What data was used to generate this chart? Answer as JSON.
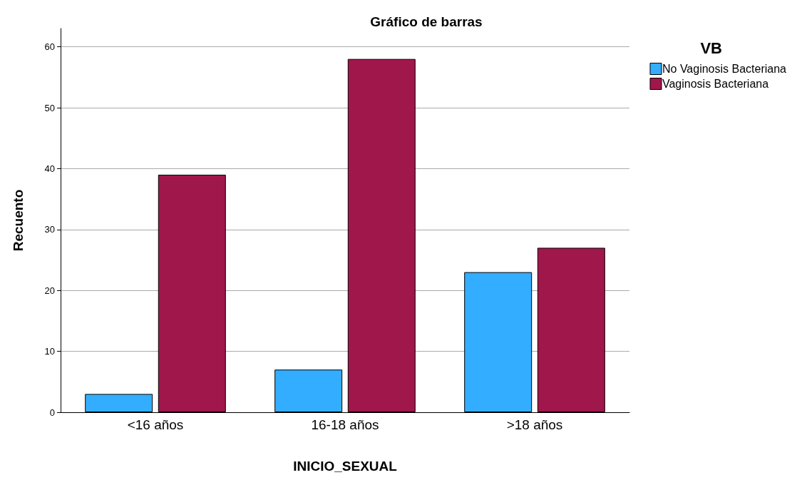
{
  "chart_data": {
    "type": "bar",
    "title": "Gráfico de barras",
    "xlabel": "INICIO_SEXUAL",
    "ylabel": "Recuento",
    "legend_title": "VB",
    "categories": [
      "<16 años",
      "16-18 años",
      ">18 años"
    ],
    "series": [
      {
        "name": "No Vaginosis Bacteriana",
        "color": "#33adff",
        "values": [
          3,
          7,
          23
        ]
      },
      {
        "name": "Vaginosis Bacteriana",
        "color": "#a0174b",
        "values": [
          39,
          58,
          27
        ]
      }
    ],
    "ylim": [
      0,
      63
    ],
    "yticks": [
      0,
      10,
      20,
      30,
      40,
      50,
      60
    ],
    "grid": "y",
    "legend": "top right"
  }
}
